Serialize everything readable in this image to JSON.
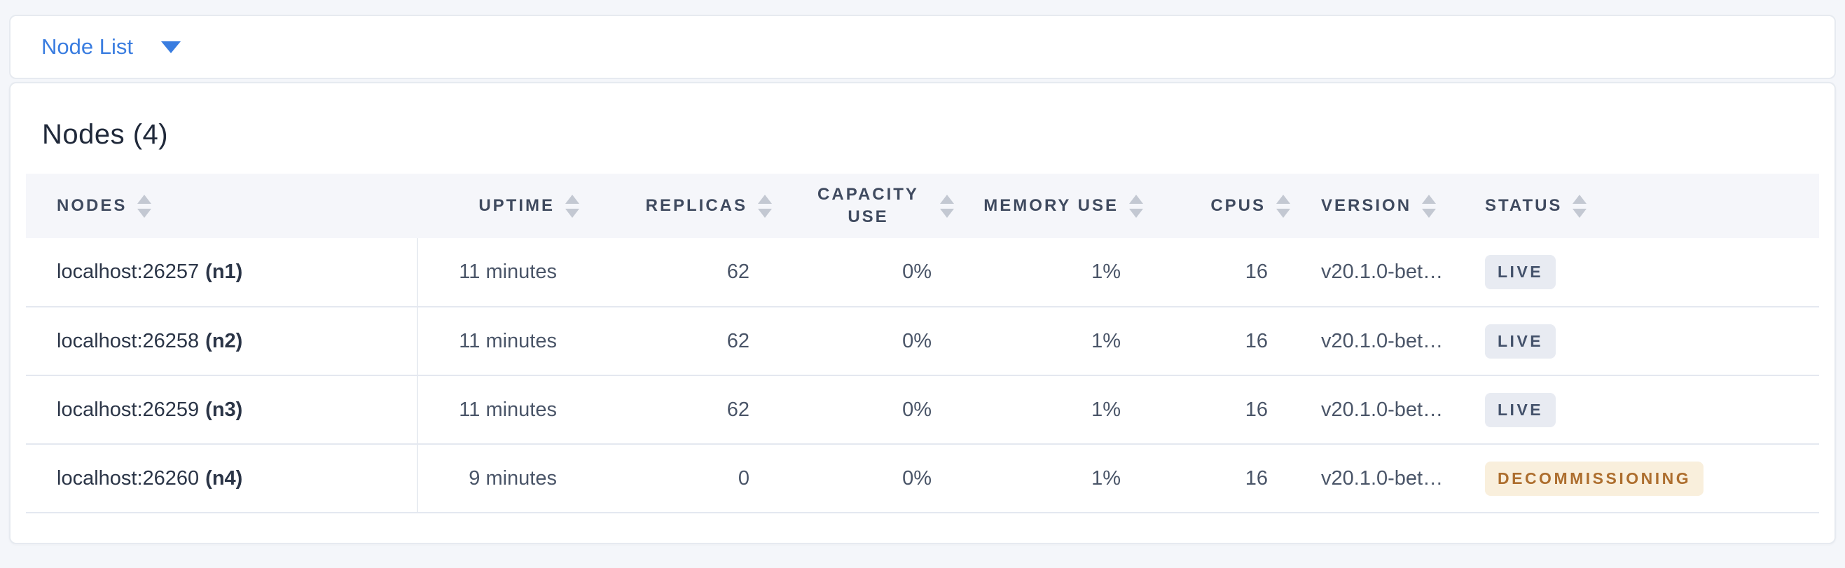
{
  "colors": {
    "page_background": "#f4f6fa",
    "card_background": "#ffffff",
    "accent_blue": "#3a7de0",
    "header_text": "#3f4a5f",
    "cell_text": "#4a5568",
    "node_text": "#2b3547",
    "sort_arrow": "#c3c8d2",
    "row_border": "#e4e8f0"
  },
  "view_selector": {
    "label": "Node List",
    "icon": "caret-down-icon"
  },
  "summary": {
    "title": "Nodes (4)"
  },
  "table": {
    "sort_icon": "sort-arrows-icon",
    "columns": [
      {
        "key": "nodes",
        "label": "NODES",
        "align": "left"
      },
      {
        "key": "uptime",
        "label": "UPTIME",
        "align": "right"
      },
      {
        "key": "replicas",
        "label": "REPLICAS",
        "align": "right"
      },
      {
        "key": "capacity_use",
        "label": "CAPACITY USE",
        "align": "right"
      },
      {
        "key": "memory_use",
        "label": "MEMORY USE",
        "align": "right"
      },
      {
        "key": "cpus",
        "label": "CPUS",
        "align": "right"
      },
      {
        "key": "version",
        "label": "VERSION",
        "align": "left"
      },
      {
        "key": "status",
        "label": "STATUS",
        "align": "left"
      }
    ],
    "rows": [
      {
        "address": "localhost:26257",
        "node_id": "(n1)",
        "uptime": "11 minutes",
        "replicas": "62",
        "capacity_use": "0%",
        "memory_use": "1%",
        "cpus": "16",
        "version": "v20.1.0-bet…",
        "status": "LIVE",
        "status_type": "live"
      },
      {
        "address": "localhost:26258",
        "node_id": "(n2)",
        "uptime": "11 minutes",
        "replicas": "62",
        "capacity_use": "0%",
        "memory_use": "1%",
        "cpus": "16",
        "version": "v20.1.0-bet…",
        "status": "LIVE",
        "status_type": "live"
      },
      {
        "address": "localhost:26259",
        "node_id": "(n3)",
        "uptime": "11 minutes",
        "replicas": "62",
        "capacity_use": "0%",
        "memory_use": "1%",
        "cpus": "16",
        "version": "v20.1.0-bet…",
        "status": "LIVE",
        "status_type": "live"
      },
      {
        "address": "localhost:26260",
        "node_id": "(n4)",
        "uptime": "9 minutes",
        "replicas": "0",
        "capacity_use": "0%",
        "memory_use": "1%",
        "cpus": "16",
        "version": "v20.1.0-bet…",
        "status": "DECOMMISSIONING",
        "status_type": "decommissioning"
      }
    ]
  },
  "status_styles": {
    "live": {
      "background": "#e8ebf2",
      "text": "#44526b"
    },
    "decommissioning": {
      "background": "#f9efdc",
      "text": "#ad6e2e"
    }
  }
}
